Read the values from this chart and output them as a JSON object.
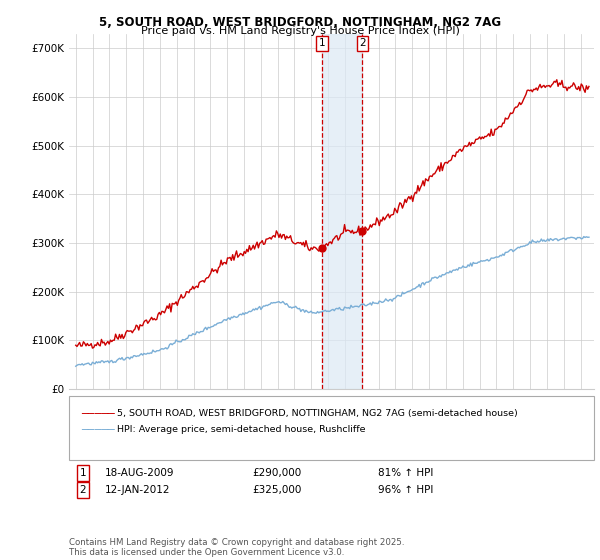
{
  "title_line1": "5, SOUTH ROAD, WEST BRIDGFORD, NOTTINGHAM, NG2 7AG",
  "title_line2": "Price paid vs. HM Land Registry's House Price Index (HPI)",
  "background_color": "#ffffff",
  "grid_color": "#cccccc",
  "red_line_color": "#cc0000",
  "blue_line_color": "#7aaed6",
  "purchase1_date": 2009.63,
  "purchase1_price": 290000,
  "purchase2_date": 2012.04,
  "purchase2_price": 325000,
  "shade_color": "#dce9f5",
  "vline_color": "#cc0000",
  "legend_entries": [
    "5, SOUTH ROAD, WEST BRIDGFORD, NOTTINGHAM, NG2 7AG (semi-detached house)",
    "HPI: Average price, semi-detached house, Rushcliffe"
  ],
  "table_rows": [
    {
      "num": "1",
      "date": "18-AUG-2009",
      "price": "£290,000",
      "hpi": "81% ↑ HPI"
    },
    {
      "num": "2",
      "date": "12-JAN-2012",
      "price": "£325,000",
      "hpi": "96% ↑ HPI"
    }
  ],
  "footer": "Contains HM Land Registry data © Crown copyright and database right 2025.\nThis data is licensed under the Open Government Licence v3.0.",
  "ylim_max": 730000,
  "yticks": [
    0,
    100000,
    200000,
    300000,
    400000,
    500000,
    600000,
    700000
  ],
  "ytick_labels": [
    "£0",
    "£100K",
    "£200K",
    "£300K",
    "£400K",
    "£500K",
    "£600K",
    "£700K"
  ]
}
